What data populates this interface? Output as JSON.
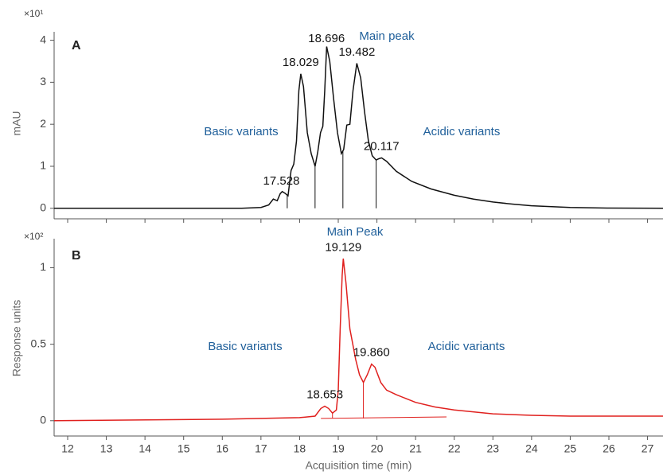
{
  "chart_data": [
    {
      "type": "line",
      "panel_label": "A",
      "y_multiplier": "×10¹",
      "y_label": "mAU",
      "color": "#111111",
      "annotations": [
        "Basic variants",
        "Main peak",
        "Acidic variants"
      ],
      "x": [
        11.65,
        16.5,
        17.0,
        17.2,
        17.32,
        17.42,
        17.5,
        17.55,
        17.62,
        17.7,
        17.78,
        17.85,
        17.92,
        17.98,
        18.03,
        18.1,
        18.2,
        18.3,
        18.4,
        18.47,
        18.54,
        18.6,
        18.65,
        18.7,
        18.78,
        18.88,
        18.98,
        19.08,
        19.14,
        19.22,
        19.3,
        19.38,
        19.48,
        19.58,
        19.68,
        19.78,
        19.88,
        19.98,
        20.05,
        20.12,
        20.25,
        20.5,
        20.9,
        21.4,
        22.0,
        22.5,
        23.0,
        23.5,
        24.0,
        25.0,
        26.0,
        27.4
      ],
      "values": [
        0,
        0,
        0.02,
        0.08,
        0.22,
        0.18,
        0.35,
        0.4,
        0.36,
        0.3,
        0.9,
        1.05,
        1.6,
        2.8,
        3.2,
        2.9,
        1.8,
        1.3,
        1.0,
        1.35,
        1.8,
        1.95,
        2.8,
        3.85,
        3.5,
        2.6,
        1.8,
        1.3,
        1.4,
        1.98,
        2.0,
        2.8,
        3.45,
        3.1,
        2.3,
        1.6,
        1.25,
        1.15,
        1.18,
        1.2,
        1.12,
        0.88,
        0.64,
        0.46,
        0.31,
        0.22,
        0.15,
        0.1,
        0.06,
        0.02,
        0.005,
        0
      ],
      "drop_lines": [
        17.68,
        18.4,
        19.12,
        19.98
      ],
      "peak_labels": [
        17.528,
        18.029,
        18.696,
        19.482,
        20.117
      ],
      "xlim": [
        11.65,
        27.4
      ],
      "ylim": [
        -0.25,
        4.2
      ],
      "yticks": [
        0,
        1,
        2,
        3,
        4
      ],
      "xticks": [
        12,
        13,
        14,
        15,
        16,
        17,
        18,
        19,
        20,
        21,
        22,
        23,
        24,
        25,
        26,
        27
      ]
    },
    {
      "type": "line",
      "panel_label": "B",
      "y_multiplier": "×10²",
      "y_label": "Response units",
      "x_label": "Acquisition time (min)",
      "color": "#e0201e",
      "annotations": [
        "Main Peak",
        "Basic variants",
        "Acidic variants"
      ],
      "x": [
        11.65,
        16.0,
        18.0,
        18.4,
        18.55,
        18.65,
        18.75,
        18.85,
        18.95,
        19.0,
        19.05,
        19.1,
        19.13,
        19.2,
        19.3,
        19.45,
        19.55,
        19.65,
        19.75,
        19.86,
        19.95,
        20.1,
        20.25,
        20.5,
        21.0,
        21.5,
        22.0,
        23.0,
        24.0,
        25.0,
        27.4
      ],
      "values": [
        0,
        0.01,
        0.02,
        0.03,
        0.08,
        0.095,
        0.08,
        0.05,
        0.07,
        0.2,
        0.6,
        0.95,
        1.06,
        0.9,
        0.6,
        0.4,
        0.3,
        0.25,
        0.3,
        0.37,
        0.35,
        0.25,
        0.2,
        0.17,
        0.12,
        0.09,
        0.07,
        0.045,
        0.035,
        0.03,
        0.03
      ],
      "drop_lines": [
        18.85,
        19.65
      ],
      "baseline_x": [
        18.55,
        21.8
      ],
      "baseline_y": [
        0.015,
        0.025
      ],
      "peak_labels": [
        18.653,
        19.129,
        {
          "value": 19.86,
          "label": "19.860"
        }
      ],
      "xlim": [
        11.65,
        27.4
      ],
      "ylim": [
        -0.1,
        1.19
      ],
      "yticks": [
        0,
        0.5,
        1
      ],
      "xticks": [
        12,
        13,
        14,
        15,
        16,
        17,
        18,
        19,
        20,
        21,
        22,
        23,
        24,
        25,
        26,
        27
      ]
    }
  ]
}
